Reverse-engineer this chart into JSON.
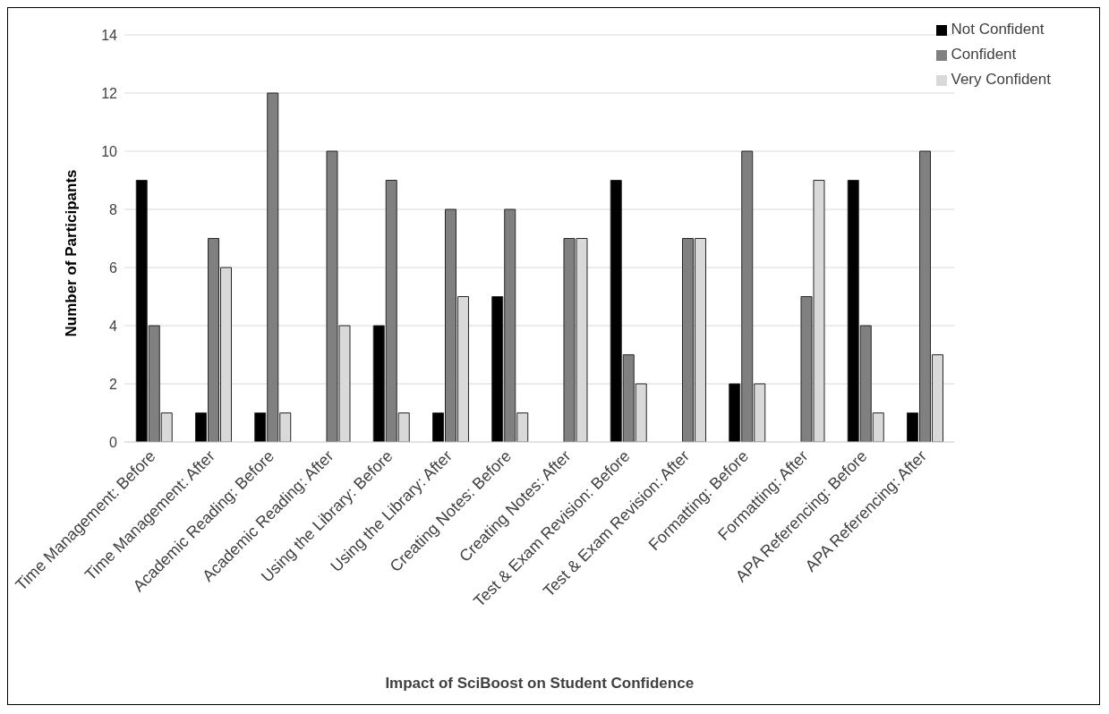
{
  "chart_data": {
    "type": "bar",
    "xlabel": "Impact of SciBoost on Student Confidence",
    "ylabel": "Number of Participants",
    "categories": [
      "Time Management: Before",
      "Time Management: After",
      "Academic Reading: Before",
      "Academic Reading: After",
      "Using the Library: Before",
      "Using the Library: After",
      "Creating Notes: Before",
      "Creating Notes: After",
      "Test & Exam Revision: Before",
      "Test & Exam Revision: After",
      "Formatting: Before",
      "Formatting: After",
      "APA Referencing: Before",
      "APA Referencing: After"
    ],
    "series": [
      {
        "name": "Not Confident",
        "color": "#000000",
        "values": [
          9,
          1,
          1,
          0,
          4,
          1,
          5,
          0,
          9,
          0,
          2,
          0,
          9,
          1
        ]
      },
      {
        "name": "Confident",
        "color": "#808080",
        "values": [
          4,
          7,
          12,
          10,
          9,
          8,
          8,
          7,
          3,
          7,
          10,
          5,
          4,
          10
        ]
      },
      {
        "name": "Very Confident",
        "color": "#d9d9d9",
        "values": [
          1,
          6,
          1,
          4,
          1,
          5,
          1,
          7,
          2,
          7,
          2,
          9,
          1,
          3
        ]
      }
    ],
    "ylim": [
      0,
      14
    ],
    "yticks": [
      0,
      2,
      4,
      6,
      8,
      10,
      12,
      14
    ],
    "grid": "y",
    "legend": "top right"
  }
}
